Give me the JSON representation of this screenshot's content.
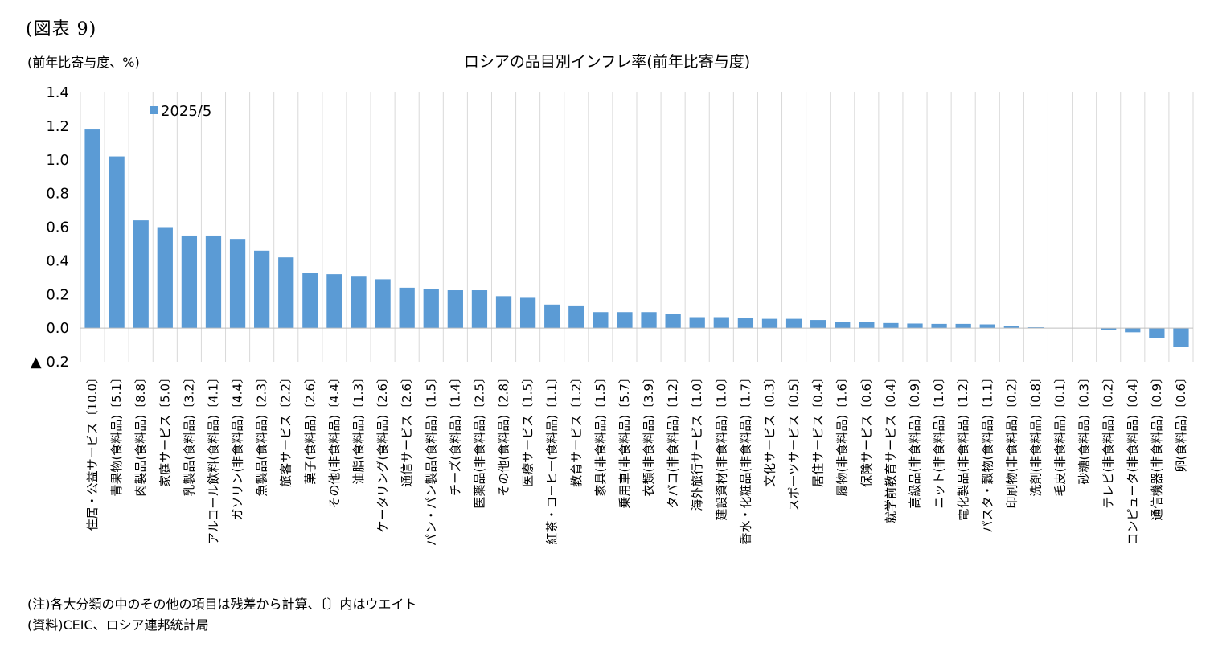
{
  "figure_label": "(図表 9)",
  "unit_label": "(前年比寄与度、%)",
  "notes": {
    "note": "(注)各大分類の中のその他の項目は残差から計算、〔〕内はウエイト",
    "source": "(資料)CEIC、ロシア連邦統計局"
  },
  "chart_data": {
    "type": "bar",
    "title": "ロシアの品目別インフレ率(前年比寄与度)",
    "ylabel": "(前年比寄与度、%)",
    "ylim": [
      -0.2,
      1.4
    ],
    "yticks": [
      1.4,
      1.2,
      1.0,
      0.8,
      0.6,
      0.4,
      0.2,
      0.0,
      -0.2
    ],
    "ytick_labels": [
      "1.4",
      "1.2",
      "1.0",
      "0.8",
      "0.6",
      "0.4",
      "0.2",
      "0.0",
      "▲ 0.2"
    ],
    "grid": "vertical",
    "legend_position": "top-left",
    "color": "#5b9bd5",
    "categories": [
      "住居・公益サービス〔10.0〕",
      "青果物(食料品)〔5.1〕",
      "肉製品(食料品)〔8.8〕",
      "家庭サービス〔5.0〕",
      "乳製品(食料品)〔3.2〕",
      "アルコール飲料(食料品)〔4.1〕",
      "ガソリン(非食料品)〔4.4〕",
      "魚製品(食料品)〔2.3〕",
      "旅客サービス〔2.2〕",
      "菓子(食料品)〔2.6〕",
      "その他(非食料品)〔4.4〕",
      "油脂(食料品)〔1.3〕",
      "ケータリング(食料品)〔2.6〕",
      "通信サービス〔2.6〕",
      "パン・パン製品(食料品)〔1.5〕",
      "チーズ(食料品)〔1.4〕",
      "医薬品(非食料品)〔2.5〕",
      "その他(食料品)〔2.8〕",
      "医療サービス〔1.5〕",
      "紅茶・コーヒー(食料品)〔1.1〕",
      "教育サービス〔1.2〕",
      "家具(非食料品)〔1.5〕",
      "乗用車(非食料品)〔5.7〕",
      "衣類(非食料品)〔3.9〕",
      "タバコ(非食料品)〔1.2〕",
      "海外旅行サービス〔1.0〕",
      "建設資材(非食料品)〔1.0〕",
      "香水・化粧品(非食料品)〔1.7〕",
      "文化サービス〔0.3〕",
      "スポーツサービス〔0.5〕",
      "居住サービス〔0.4〕",
      "履物(非食料品)〔1.6〕",
      "保険サービス〔0.6〕",
      "就学前教育サービス〔0.4〕",
      "高級品(非食料品)〔0.9〕",
      "ニット(非食料品)〔1.0〕",
      "電化製品(非食料品)〔1.2〕",
      "パスタ・穀物(食料品)〔1.1〕",
      "印刷物(非食料品)〔0.2〕",
      "洗剤(非食料品)〔0.8〕",
      "毛皮(非食料品)〔0.1〕",
      "砂糖(食料品)〔0.3〕",
      "テレビ(非食料品)〔0.2〕",
      "コンピュータ(非食料品)〔0.4〕",
      "通信機器(非食料品)〔0.9〕",
      "卵(食料品)〔0.6〕"
    ],
    "series": [
      {
        "name": "2025/5",
        "values": [
          1.18,
          1.02,
          0.64,
          0.6,
          0.55,
          0.55,
          0.53,
          0.46,
          0.42,
          0.33,
          0.32,
          0.31,
          0.29,
          0.24,
          0.23,
          0.225,
          0.225,
          0.19,
          0.18,
          0.14,
          0.13,
          0.095,
          0.095,
          0.095,
          0.085,
          0.065,
          0.065,
          0.058,
          0.055,
          0.055,
          0.048,
          0.038,
          0.035,
          0.03,
          0.027,
          0.025,
          0.025,
          0.022,
          0.012,
          0.005,
          0.0,
          0.0,
          -0.01,
          -0.025,
          -0.06,
          -0.11
        ]
      }
    ]
  }
}
